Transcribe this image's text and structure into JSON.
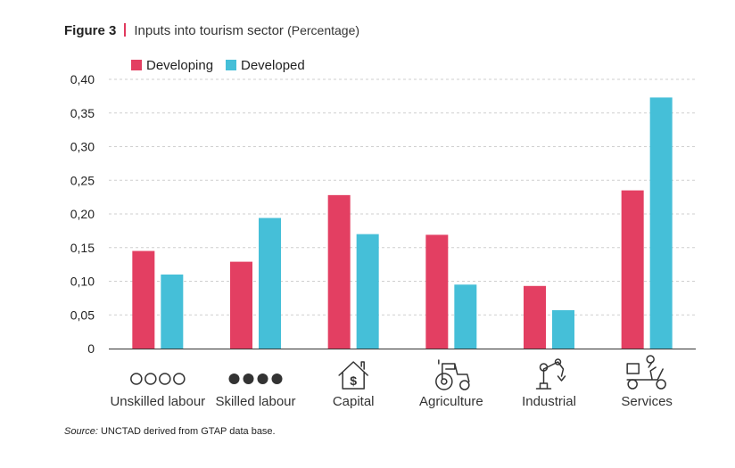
{
  "figure": {
    "label": "Figure 3",
    "title": "Inputs into tourism sector",
    "unit": "(Percentage)"
  },
  "source": {
    "prefix": "Source:",
    "text": " UNCTAD derived from GTAP data base."
  },
  "colors": {
    "developing": "#e33f62",
    "developed": "#45bfd8",
    "accent": "#e03a5e"
  },
  "chart_data": {
    "type": "bar",
    "categories": [
      "Unskilled labour",
      "Skilled labour",
      "Capital",
      "Agriculture",
      "Industrial",
      "Services"
    ],
    "category_icons": [
      "four-empty-circles-icon",
      "four-filled-circles-icon",
      "house-dollar-icon",
      "tractor-icon",
      "robot-arm-icon",
      "delivery-scooter-icon"
    ],
    "series": [
      {
        "name": "Developing",
        "color": "#e33f62",
        "values": [
          0.145,
          0.129,
          0.228,
          0.169,
          0.093,
          0.235
        ]
      },
      {
        "name": "Developed",
        "color": "#45bfd8",
        "values": [
          0.11,
          0.194,
          0.17,
          0.095,
          0.057,
          0.373
        ]
      }
    ],
    "ylim": [
      0,
      0.4
    ],
    "yticks": [
      0,
      0.05,
      0.1,
      0.15,
      0.2,
      0.25,
      0.3,
      0.35,
      0.4
    ],
    "ytick_labels": [
      "0",
      "0,05",
      "0,10",
      "0,15",
      "0,20",
      "0,25",
      "0,30",
      "0,35",
      "0,40"
    ],
    "grid": true,
    "legend_position": "top-left"
  }
}
